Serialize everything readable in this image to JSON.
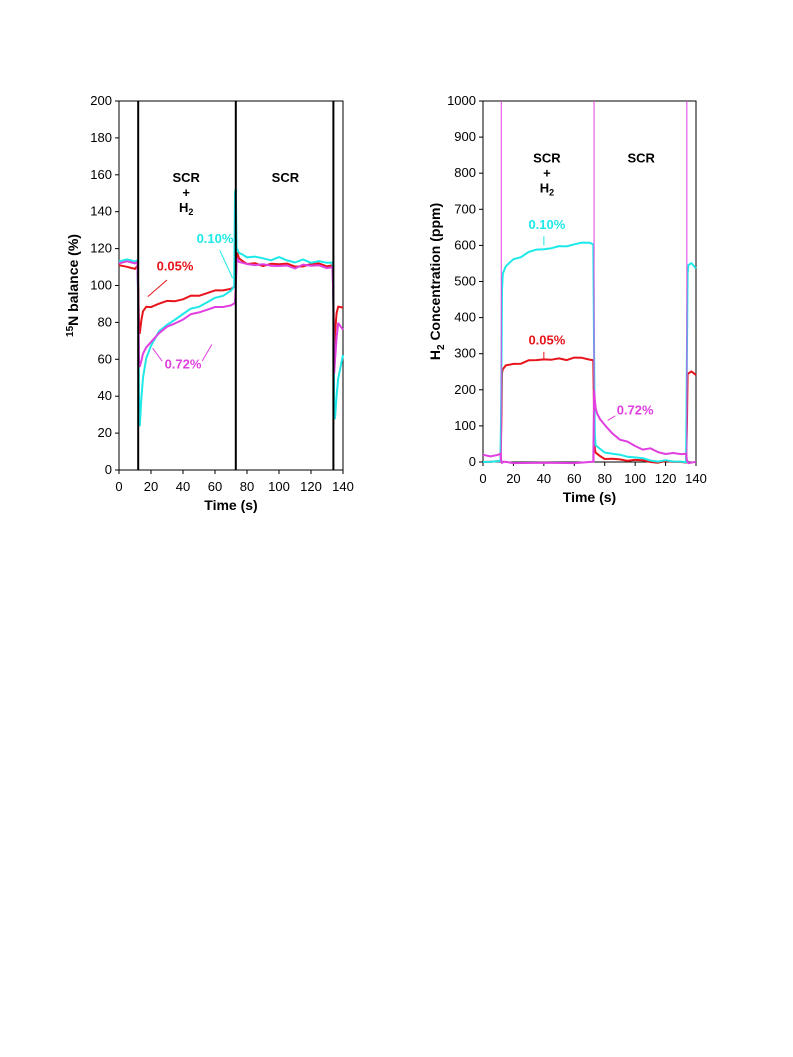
{
  "chart_data": [
    {
      "type": "line",
      "ylabel_sup": "15",
      "ylabel": "N balance (%)",
      "xlabel": "Time (s)",
      "xlim": [
        0,
        140
      ],
      "ylim": [
        0,
        200
      ],
      "xticks": [
        0,
        20,
        40,
        60,
        80,
        100,
        120,
        140
      ],
      "yticks": [
        0,
        20,
        40,
        60,
        80,
        100,
        120,
        140,
        160,
        180,
        200
      ],
      "switch_lines": [
        12,
        73,
        134
      ],
      "region_labels": [
        {
          "lines": [
            "SCR",
            "+",
            "H"
          ],
          "sub": "2",
          "x": 42,
          "y": 156
        },
        {
          "lines": [
            "SCR"
          ],
          "x": 104,
          "y": 156
        }
      ],
      "series": [
        {
          "name": "0.05%",
          "color": "#e8141b",
          "x": [
            0,
            5,
            10,
            11.5,
            12,
            12.5,
            13,
            14,
            15,
            17,
            20,
            25,
            30,
            35,
            40,
            45,
            50,
            55,
            60,
            65,
            70,
            72.5,
            73,
            73.5,
            74,
            75,
            77,
            80,
            85,
            90,
            95,
            100,
            105,
            110,
            115,
            120,
            125,
            130,
            133.5,
            134,
            134.5,
            135,
            136,
            137,
            140
          ],
          "y": [
            111,
            110,
            109,
            110,
            100,
            80,
            74,
            82,
            86,
            88,
            89,
            90,
            91,
            92,
            93,
            94,
            95,
            96,
            97,
            98,
            99,
            99,
            102,
            116,
            117,
            115,
            113,
            112,
            112,
            111,
            112,
            111,
            112,
            111,
            110,
            111,
            112,
            110,
            111,
            92,
            60,
            75,
            85,
            89,
            88
          ]
        },
        {
          "name": "0.10%",
          "color": "#1ee8e8",
          "x": [
            0,
            5,
            10,
            11.5,
            12,
            12.5,
            13,
            14,
            15,
            17,
            20,
            25,
            30,
            35,
            40,
            45,
            50,
            55,
            60,
            65,
            70,
            72,
            72.5,
            73,
            73.5,
            74,
            75,
            77,
            80,
            85,
            90,
            95,
            100,
            105,
            110,
            115,
            120,
            125,
            130,
            133.5,
            134,
            134.5,
            135,
            136,
            137,
            140
          ],
          "y": [
            113,
            114,
            113,
            113,
            90,
            40,
            24,
            40,
            50,
            60,
            68,
            75,
            78,
            82,
            85,
            87,
            89,
            91,
            93,
            95,
            98,
            100,
            150,
            152,
            120,
            119,
            118,
            117,
            116,
            115,
            115,
            114,
            115,
            114,
            113,
            114,
            113,
            114,
            112,
            113,
            90,
            32,
            28,
            40,
            50,
            62
          ]
        },
        {
          "name": "0.72%",
          "color": "#e040e0",
          "x": [
            0,
            5,
            10,
            11.5,
            12,
            12.5,
            13,
            14,
            15,
            17,
            20,
            25,
            30,
            35,
            40,
            45,
            50,
            55,
            60,
            65,
            70,
            72.5,
            73,
            73.5,
            74,
            75,
            77,
            80,
            85,
            90,
            95,
            100,
            105,
            110,
            115,
            120,
            125,
            130,
            133.5,
            134,
            134.5,
            135,
            136,
            137,
            140
          ],
          "y": [
            112,
            113,
            112,
            112,
            95,
            60,
            56,
            60,
            63,
            66,
            70,
            74,
            77,
            80,
            82,
            84,
            86,
            87,
            88,
            89,
            90,
            90,
            100,
            113,
            114,
            113,
            112,
            112,
            111,
            112,
            111,
            110,
            111,
            110,
            111,
            110,
            111,
            109,
            110,
            90,
            52,
            60,
            72,
            80,
            76
          ]
        }
      ],
      "annotations": [
        {
          "text": "0.10%",
          "color": "#1ee8e8",
          "x": 60,
          "y": 123,
          "lx": [
            63,
            71
          ],
          "ly": [
            119,
            104
          ]
        },
        {
          "text": "0.05%",
          "color": "#e8141b",
          "x": 35,
          "y": 108,
          "lx": [
            30,
            18
          ],
          "ly": [
            103,
            94
          ]
        },
        {
          "text": "0.72%",
          "color": "#e040e0",
          "x": 40,
          "y": 55,
          "lx": [
            27,
            21
          ],
          "ly": [
            59,
            66
          ],
          "lx2": [
            52,
            58
          ],
          "ly2": [
            59,
            68
          ]
        }
      ]
    },
    {
      "type": "line",
      "ylabel_pre": "H",
      "ylabel_sub": "2",
      "ylabel": " Concentration (ppm)",
      "xlabel": "Time (s)",
      "xlim": [
        0,
        140
      ],
      "ylim": [
        0,
        1000
      ],
      "xticks": [
        0,
        20,
        40,
        60,
        80,
        100,
        120,
        140
      ],
      "yticks": [
        0,
        100,
        200,
        300,
        400,
        500,
        600,
        700,
        800,
        900,
        1000
      ],
      "switch_lines": [
        12,
        73,
        134
      ],
      "region_labels": [
        {
          "lines": [
            "SCR",
            "+",
            "H"
          ],
          "sub": "2",
          "x": 42,
          "y": 830
        },
        {
          "lines": [
            "SCR"
          ],
          "x": 104,
          "y": 830
        }
      ],
      "series": [
        {
          "name": "0.05%",
          "color": "#e8141b",
          "x": [
            0,
            5,
            11.5,
            12,
            12.5,
            13,
            15,
            20,
            25,
            30,
            35,
            40,
            45,
            50,
            55,
            60,
            65,
            70,
            72.5,
            73,
            73.5,
            74,
            75,
            77,
            80,
            85,
            90,
            95,
            100,
            105,
            110,
            115,
            120,
            125,
            130,
            133.5,
            134,
            134.5,
            135,
            137,
            140
          ],
          "y": [
            0,
            0,
            0,
            100,
            250,
            255,
            265,
            270,
            275,
            280,
            282,
            285,
            283,
            287,
            285,
            288,
            286,
            284,
            285,
            120,
            40,
            30,
            20,
            15,
            12,
            8,
            5,
            4,
            3,
            2,
            2,
            1,
            1,
            1,
            1,
            1,
            100,
            240,
            245,
            250,
            245
          ]
        },
        {
          "name": "0.10%",
          "color": "#1ee8e8",
          "x": [
            0,
            5,
            11.5,
            12,
            12.5,
            13,
            15,
            20,
            25,
            30,
            35,
            40,
            45,
            50,
            55,
            60,
            65,
            70,
            72.5,
            73,
            73.5,
            74,
            75,
            77,
            80,
            85,
            90,
            95,
            100,
            105,
            110,
            115,
            120,
            125,
            130,
            133.5,
            134,
            134.5,
            135,
            137,
            140
          ],
          "y": [
            0,
            0,
            0,
            200,
            480,
            520,
            540,
            560,
            570,
            580,
            588,
            590,
            592,
            598,
            600,
            602,
            605,
            608,
            606,
            300,
            80,
            50,
            40,
            35,
            30,
            22,
            18,
            15,
            10,
            8,
            6,
            4,
            3,
            2,
            2,
            2,
            300,
            520,
            545,
            550,
            540
          ]
        },
        {
          "name": "0.72%",
          "color": "#e040e0",
          "x": [
            0,
            5,
            10,
            11.5,
            12,
            12.5,
            13,
            15,
            20,
            40,
            60,
            72.5,
            73,
            73.5,
            74,
            75,
            77,
            80,
            85,
            90,
            95,
            100,
            105,
            110,
            115,
            120,
            125,
            130,
            133.5,
            134,
            135,
            140
          ],
          "y": [
            20,
            15,
            20,
            20,
            5,
            0,
            0,
            0,
            0,
            0,
            0,
            0,
            200,
            170,
            150,
            135,
            120,
            100,
            80,
            65,
            55,
            45,
            38,
            35,
            30,
            25,
            22,
            20,
            20,
            5,
            0,
            0
          ]
        }
      ],
      "annotations": [
        {
          "text": "0.10%",
          "color": "#1ee8e8",
          "x": 42,
          "y": 645,
          "lx": [
            40,
            40
          ],
          "ly": [
            625,
            600
          ]
        },
        {
          "text": "0.05%",
          "color": "#e8141b",
          "x": 42,
          "y": 325,
          "lx": [
            40,
            40
          ],
          "ly": [
            305,
            285
          ]
        },
        {
          "text": "0.72%",
          "color": "#e040e0",
          "x": 100,
          "y": 132,
          "lx": [
            87,
            82
          ],
          "ly": [
            128,
            115
          ]
        }
      ]
    }
  ],
  "colors": {
    "series_005": "#e8141b",
    "series_010": "#1ee8e8",
    "series_072": "#e040e0",
    "switch_line_left": "#000000",
    "switch_line_right": "#e040e0"
  }
}
